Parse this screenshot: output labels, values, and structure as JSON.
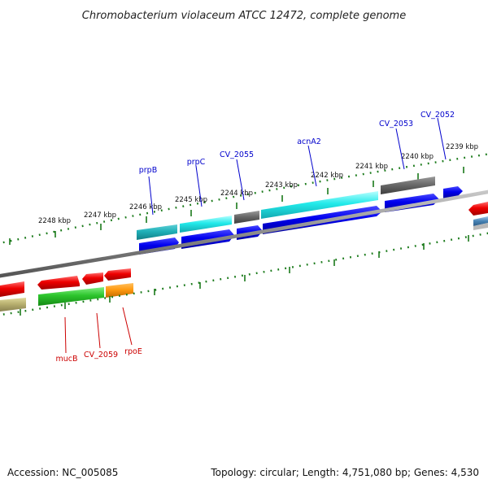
{
  "title": "Chromobacterium violaceum ATCC 12472, complete genome",
  "footer": {
    "accession": "Accession: NC_005085",
    "summary": "Topology: circular; Length: 4,751,080 bp; Genes: 4,530"
  },
  "tick_labels": [
    "2248 kbp",
    "2247 kbp",
    "2246 kbp",
    "2245 kbp",
    "2244 kbp",
    "2243 kbp",
    "2242 kbp",
    "2241 kbp",
    "2240 kbp",
    "2239 kbp"
  ],
  "gene_labels_top": [
    "prpB",
    "prpC",
    "CV_2055",
    "acnA2",
    "CV_2053",
    "CV_2052"
  ],
  "gene_labels_bottom": [
    "mucB",
    "CV_2059",
    "rpoE"
  ],
  "colors": {
    "forward_label": "#0000cc",
    "reverse_label": "#cc0000",
    "tick": "#1a7a1a",
    "backbone": "#8a8a8a"
  }
}
